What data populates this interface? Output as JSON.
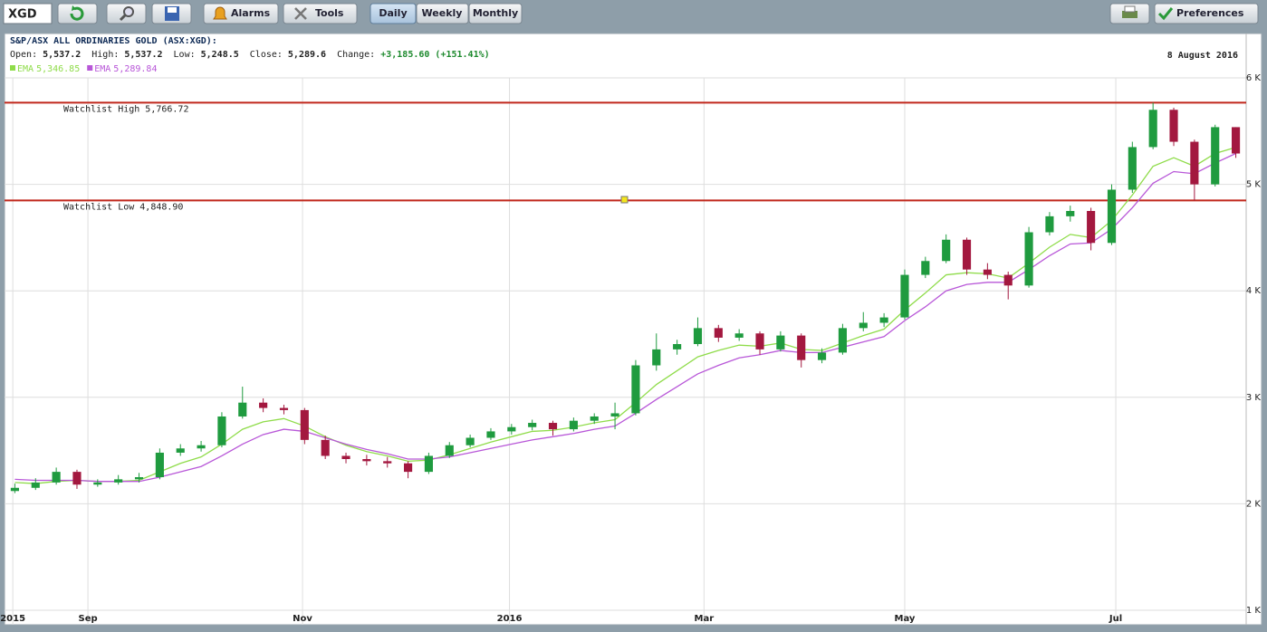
{
  "toolbar": {
    "symbol": "XGD",
    "alarms": "Alarms",
    "tools": "Tools",
    "periods": [
      "Daily",
      "Weekly",
      "Monthly"
    ],
    "preferences": "Preferences"
  },
  "quote": {
    "items": [
      {
        "label": "Open:",
        "value": "5,537.2"
      },
      {
        "label": "High:",
        "value": "5,537.2"
      },
      {
        "label": "Low:",
        "value": "5,248.5"
      },
      {
        "label": "Close:",
        "value": "5,289.6"
      },
      {
        "label": "Change:",
        "value": "+3,185.60 (+151.41%)"
      }
    ]
  },
  "chart_data": {
    "type": "candlestick",
    "title": "S&P/ASX ALL ORDINARIES GOLD (ASX:XGD):",
    "date": "8 August 2016",
    "up_color": "#1f9b3f",
    "down_color": "#a3183f",
    "open": [
      2120,
      2150,
      2200,
      2300,
      2180,
      2200,
      2230,
      2250,
      2480,
      2520,
      2550,
      2820,
      2950,
      2900,
      2880,
      2600,
      2450,
      2420,
      2400,
      2380,
      2300,
      2450,
      2550,
      2620,
      2680,
      2720,
      2760,
      2700,
      2780,
      2820,
      2850,
      3300,
      3450,
      3500,
      3650,
      3560,
      3600,
      3450,
      3580,
      3350,
      3420,
      3650,
      3700,
      3750,
      4150,
      4280,
      4480,
      4200,
      4150,
      4050,
      4550,
      4700,
      4750,
      4450,
      4950,
      5350,
      5700,
      5400,
      5000,
      5537.2
    ],
    "high": [
      2190,
      2240,
      2340,
      2320,
      2230,
      2270,
      2290,
      2520,
      2560,
      2590,
      2860,
      3100,
      2990,
      2930,
      2900,
      2640,
      2480,
      2460,
      2440,
      2400,
      2480,
      2580,
      2650,
      2710,
      2750,
      2790,
      2780,
      2810,
      2850,
      2950,
      3350,
      3600,
      3540,
      3750,
      3680,
      3640,
      3620,
      3620,
      3600,
      3460,
      3690,
      3800,
      3790,
      4200,
      4320,
      4530,
      4500,
      4260,
      4180,
      4600,
      4740,
      4800,
      4780,
      5000,
      5400,
      5766.72,
      5720,
      5420,
      5560,
      5537.2
    ],
    "low": [
      2100,
      2130,
      2180,
      2140,
      2160,
      2180,
      2200,
      2230,
      2450,
      2490,
      2530,
      2800,
      2860,
      2840,
      2560,
      2420,
      2380,
      2360,
      2340,
      2240,
      2280,
      2430,
      2530,
      2600,
      2650,
      2690,
      2640,
      2680,
      2750,
      2700,
      2830,
      3250,
      3400,
      3480,
      3520,
      3530,
      3400,
      3430,
      3280,
      3320,
      3400,
      3620,
      3660,
      3730,
      4120,
      4260,
      4150,
      4110,
      3920,
      4030,
      4520,
      4650,
      4380,
      4430,
      4920,
      5330,
      5360,
      4848.9,
      4980,
      5248.5
    ],
    "close": [
      2150,
      2200,
      2300,
      2180,
      2200,
      2230,
      2250,
      2480,
      2520,
      2550,
      2820,
      2950,
      2900,
      2880,
      2600,
      2450,
      2420,
      2400,
      2380,
      2300,
      2450,
      2550,
      2620,
      2680,
      2720,
      2760,
      2700,
      2780,
      2820,
      2850,
      3300,
      3450,
      3500,
      3650,
      3560,
      3600,
      3450,
      3580,
      3350,
      3420,
      3650,
      3700,
      3750,
      4150,
      4280,
      4480,
      4200,
      4150,
      4050,
      4550,
      4700,
      4750,
      4450,
      4950,
      5350,
      5700,
      5400,
      5000,
      5537.2,
      5289.6
    ],
    "series": [
      {
        "name": "EMA",
        "last_label": "5,346.85",
        "color": "#8fdc4a",
        "values": [
          2200,
          2190,
          2210,
          2220,
          2210,
          2210,
          2220,
          2300,
          2380,
          2440,
          2560,
          2700,
          2770,
          2800,
          2730,
          2630,
          2550,
          2490,
          2450,
          2400,
          2410,
          2460,
          2520,
          2580,
          2630,
          2680,
          2690,
          2720,
          2760,
          2790,
          2950,
          3120,
          3250,
          3380,
          3440,
          3490,
          3480,
          3510,
          3450,
          3440,
          3510,
          3580,
          3640,
          3820,
          3980,
          4150,
          4170,
          4160,
          4120,
          4260,
          4410,
          4530,
          4500,
          4660,
          4900,
          5170,
          5250,
          5170,
          5290,
          5346.85
        ]
      },
      {
        "name": "EMA",
        "last_label": "5,289.84",
        "color": "#b857d8",
        "values": [
          2230,
          2220,
          2220,
          2220,
          2210,
          2210,
          2210,
          2250,
          2300,
          2350,
          2450,
          2560,
          2650,
          2700,
          2680,
          2620,
          2560,
          2510,
          2470,
          2420,
          2420,
          2440,
          2480,
          2520,
          2560,
          2600,
          2630,
          2660,
          2700,
          2730,
          2850,
          2980,
          3100,
          3220,
          3300,
          3370,
          3400,
          3440,
          3420,
          3420,
          3470,
          3520,
          3570,
          3720,
          3850,
          4000,
          4060,
          4080,
          4080,
          4200,
          4330,
          4440,
          4450,
          4580,
          4780,
          5010,
          5120,
          5100,
          5200,
          5289.84
        ]
      }
    ],
    "annotations": [
      {
        "label": "Watchlist High 5,766.72",
        "value": 5766.72
      },
      {
        "label": "Watchlist Low 4,848.90",
        "value": 4848.9
      }
    ],
    "annotation_color": "#c0281c",
    "ylim": [
      1000,
      6000
    ],
    "yticks": [
      {
        "value": 1000,
        "label": "1 K"
      },
      {
        "value": 2000,
        "label": "2 K"
      },
      {
        "value": 3000,
        "label": "3 K"
      },
      {
        "value": 4000,
        "label": "4 K"
      },
      {
        "value": 5000,
        "label": "5 K"
      },
      {
        "value": 6000,
        "label": "6 K"
      }
    ],
    "xlim": [
      -0.5,
      59.5
    ],
    "xticks": [
      {
        "value": -0.1,
        "label": "2015"
      },
      {
        "value": 3.53,
        "label": "Sep"
      },
      {
        "value": 13.9,
        "label": "Nov"
      },
      {
        "value": 23.9,
        "label": "2016"
      },
      {
        "value": 33.3,
        "label": "Mar"
      },
      {
        "value": 43.0,
        "label": "May"
      },
      {
        "value": 53.2,
        "label": "Jul"
      }
    ],
    "grid": true
  }
}
